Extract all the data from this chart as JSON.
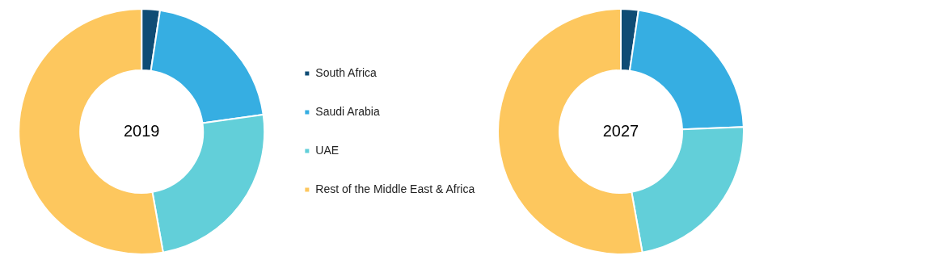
{
  "chart_data": [
    {
      "type": "donut",
      "title": "2019",
      "categories": [
        "South Africa",
        "Saudi Arabia",
        "UAE",
        "Rest of the Middle East & Africa"
      ],
      "values": [
        2.4,
        20.4,
        24.4,
        52.8
      ],
      "colors": [
        "#0f4c75",
        "#36aee2",
        "#62cfd9",
        "#fdc75e"
      ],
      "legend": "right"
    },
    {
      "type": "donut",
      "title": "2027",
      "categories": [
        null,
        null,
        null,
        null
      ],
      "values": [
        2.3,
        22.1,
        22.8,
        52.8
      ],
      "colors": [
        "#0f4c75",
        "#36aee2",
        "#62cfd9",
        "#fdc75e"
      ],
      "legend": false
    }
  ]
}
